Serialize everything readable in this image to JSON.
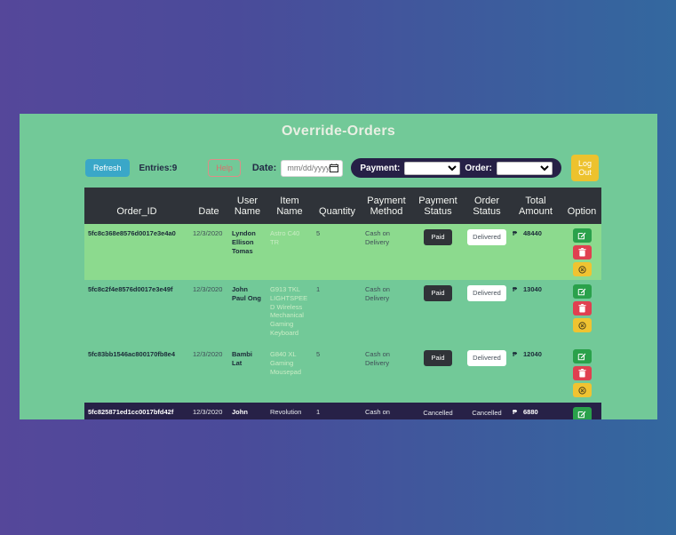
{
  "page": {
    "title": "Override-Orders"
  },
  "toolbar": {
    "refresh_label": "Refresh",
    "entries_label": "Entries:9",
    "help_label": "Help",
    "date_label": "Date:",
    "date_placeholder": "mm/dd/yyyy",
    "payment_label": "Payment:",
    "payment_selected_value": "",
    "order_label": "Order:",
    "order_selected_value": "",
    "logout_label": "Log Out"
  },
  "colors": {
    "background_gradient_left": "#55479a",
    "background_gradient_right": "#33689f",
    "panel_green": "#72c998",
    "row_highlight_green": "#8cda8e",
    "row_dark_navy": "#272147",
    "header_charcoal": "#2f3339",
    "refresh_blue": "#3aa7c8",
    "help_red": "#d9706c",
    "logout_yellow": "#edc22e",
    "edit_green": "#2aa14b",
    "delete_red": "#e04050",
    "cancel_yellow": "#f0c331",
    "paid_badge_dark": "#303338"
  },
  "icons": {
    "calendar": "calendar-icon",
    "edit": "pencil-square-icon",
    "delete": "trash-icon",
    "cancel": "circle-x-icon"
  },
  "table": {
    "columns": [
      "Order_ID",
      "Date",
      "User Name",
      "Item Name",
      "Quantity",
      "Payment Method",
      "Payment Status",
      "Order Status",
      "Total Amount",
      "Option"
    ],
    "currency_symbol": "₱",
    "rows": [
      {
        "order_id": "5fc8c368e8576d0017e3e4a0",
        "date": "12/3/2020",
        "user_name": "Lyndon Ellison Tomas",
        "item_name": "Astro C40 TR",
        "quantity": "5",
        "payment_method": "Cash on Delivery",
        "payment_status": {
          "style": "badge-dark",
          "label": "Paid"
        },
        "order_status": {
          "style": "badge-light",
          "label": "Delivered"
        },
        "total_amount": "48440",
        "options": [
          "edit",
          "delete",
          "cancel"
        ],
        "theme": "light"
      },
      {
        "order_id": "5fc8c2f4e8576d0017e3e49f",
        "date": "12/3/2020",
        "user_name": "John Paul Ong",
        "item_name": "G913 TKL LIGHTSPEED Wireless Mechanical Gaming Keyboard",
        "quantity": "1",
        "payment_method": "Cash on Delivery",
        "payment_status": {
          "style": "badge-dark",
          "label": "Paid"
        },
        "order_status": {
          "style": "badge-light",
          "label": "Delivered"
        },
        "total_amount": "13040",
        "options": [
          "edit",
          "delete",
          "cancel"
        ],
        "theme": "default"
      },
      {
        "order_id": "5fc83bb1546ac800170fb8e4",
        "date": "12/3/2020",
        "user_name": "Bambi Lat",
        "item_name": "G840 XL Gaming Mousepad",
        "quantity": "5",
        "payment_method": "Cash on Delivery",
        "payment_status": {
          "style": "badge-dark",
          "label": "Paid"
        },
        "order_status": {
          "style": "badge-light",
          "label": "Delivered"
        },
        "total_amount": "12040",
        "options": [
          "edit",
          "delete",
          "cancel"
        ],
        "theme": "dark-clipped-none"
      },
      {
        "order_id": "5fc825871ed1cc0017bfd42f",
        "date": "12/3/2020",
        "user_name": "John",
        "item_name": "Revolution",
        "quantity": "1",
        "payment_method": "Cash on",
        "payment_status": {
          "style": "text",
          "label": "Cancelled"
        },
        "order_status": {
          "style": "text",
          "label": "Cancelled"
        },
        "total_amount": "6880",
        "options": [
          "edit"
        ],
        "theme": "dark"
      }
    ]
  }
}
